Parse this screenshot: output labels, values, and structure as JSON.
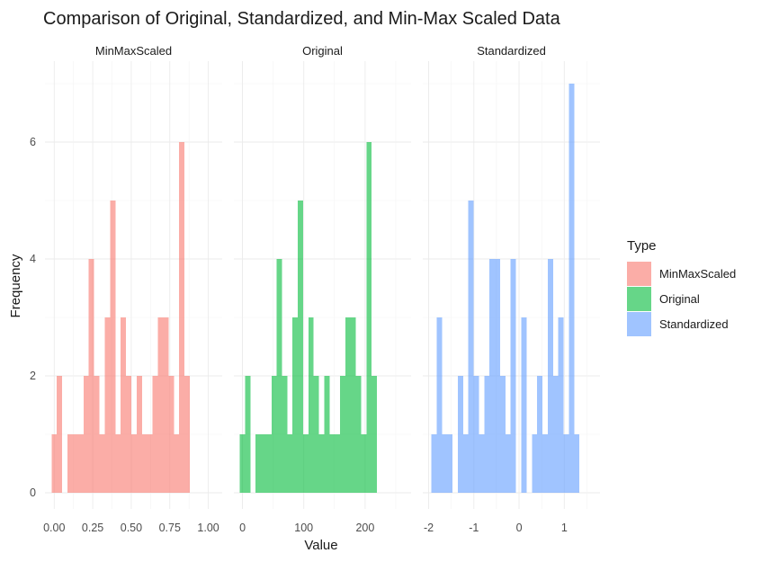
{
  "chart_data": {
    "type": "bar",
    "subtype": "faceted-histogram",
    "title": "Comparison of Original, Standardized, and Min-Max Scaled Data",
    "xlabel": "Value",
    "ylabel": "Frequency",
    "ylim": [
      0,
      7
    ],
    "y_ticks": [
      0,
      2,
      4,
      6
    ],
    "legend": {
      "title": "Type",
      "position": "right",
      "entries": [
        {
          "name": "MinMaxScaled",
          "color": "#F8766D"
        },
        {
          "name": "Original",
          "color": "#00BA38"
        },
        {
          "name": "Standardized",
          "color": "#619CFF"
        }
      ]
    },
    "facets": [
      {
        "name": "MinMaxScaled",
        "color": "#F8766D",
        "xlim": [
          -0.06,
          1.09
        ],
        "x_ticks": [
          0.0,
          0.25,
          0.5,
          0.75,
          1.0
        ],
        "x_tick_labels": [
          "0.00",
          "0.25",
          "0.50",
          "0.75",
          "1.00"
        ],
        "bin_start": -0.0172,
        "bin_width": 0.0345,
        "counts": [
          1,
          2,
          0,
          1,
          1,
          1,
          2,
          4,
          2,
          1,
          3,
          5,
          1,
          3,
          2,
          1,
          2,
          1,
          1,
          2,
          3,
          3,
          2,
          1,
          6,
          2
        ]
      },
      {
        "name": "Original",
        "color": "#00BA38",
        "xlim": [
          -14,
          275
        ],
        "x_ticks": [
          0,
          100,
          200
        ],
        "x_tick_labels": [
          "0",
          "100",
          "200"
        ],
        "bin_start": -4.3,
        "bin_width": 8.6,
        "counts": [
          1,
          2,
          0,
          1,
          1,
          1,
          2,
          4,
          2,
          1,
          3,
          5,
          1,
          3,
          2,
          1,
          2,
          1,
          1,
          2,
          3,
          3,
          2,
          1,
          6,
          2
        ]
      },
      {
        "name": "Standardized",
        "color": "#619CFF",
        "xlim": [
          -2.13,
          1.79
        ],
        "x_ticks": [
          -2,
          -1,
          0,
          1
        ],
        "x_tick_labels": [
          "-2",
          "-1",
          "0",
          "1"
        ],
        "bin_start": -1.94,
        "bin_width": 0.117,
        "counts": [
          1,
          3,
          1,
          1,
          0,
          2,
          1,
          5,
          2,
          1,
          2,
          4,
          4,
          2,
          1,
          4,
          0,
          3,
          0,
          1,
          2,
          1,
          4,
          2,
          3,
          1,
          7,
          1
        ]
      }
    ]
  }
}
